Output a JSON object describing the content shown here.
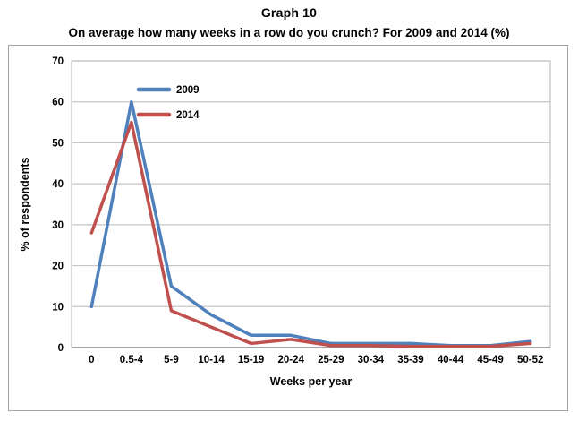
{
  "chart_data": {
    "type": "line",
    "title": "Graph 10",
    "subtitle": "On average how many weeks in a row do you crunch? For 2009 and 2014 (%)",
    "xlabel": "Weeks per year",
    "ylabel": "% of respondents",
    "categories": [
      "0",
      "0.5-4",
      "5-9",
      "10-14",
      "15-19",
      "20-24",
      "25-29",
      "30-34",
      "35-39",
      "40-44",
      "45-49",
      "50-52"
    ],
    "series": [
      {
        "name": "2009",
        "color": "#4F81BD",
        "values": [
          10,
          60,
          15,
          8,
          3,
          3,
          1,
          1,
          1,
          0.5,
          0.5,
          1.5
        ]
      },
      {
        "name": "2014",
        "color": "#C0504D",
        "values": [
          28,
          55,
          9,
          5,
          1,
          2,
          0.5,
          0.5,
          0.3,
          0.3,
          0.3,
          1
        ]
      }
    ],
    "ylim": [
      0,
      70
    ],
    "ytick_step": 10,
    "yticks": [
      "0",
      "10",
      "20",
      "30",
      "40",
      "50",
      "60",
      "70"
    ],
    "grid": true,
    "legend_position": "upper-left-inside",
    "colors": {
      "gridline": "#c6c6c6",
      "plot_border": "#c0c0c0",
      "axis_line": "#8c8c8c",
      "frame_border": "#a3a3a3",
      "text": "#000000",
      "background": "#ffffff"
    }
  }
}
